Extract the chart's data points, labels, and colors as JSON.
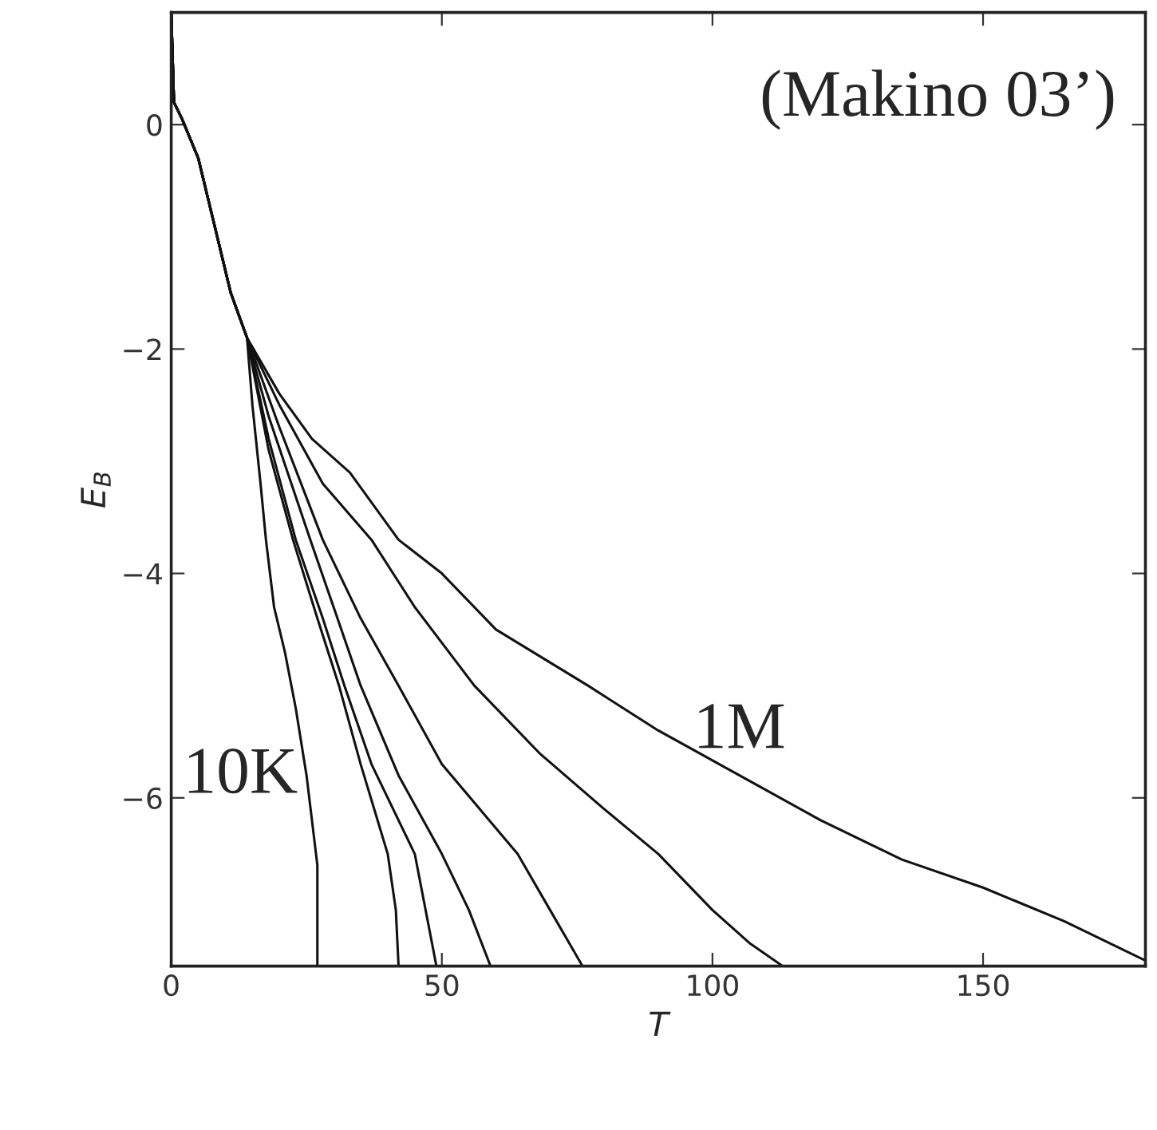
{
  "chart_data": {
    "type": "line",
    "xlabel": "T",
    "ylabel": "E$_{B}$",
    "xlim": [
      0,
      180
    ],
    "ylim": [
      -7.5,
      1
    ],
    "xticks": [
      0,
      50,
      100,
      150
    ],
    "yticks": [
      -6,
      -4,
      -2,
      0
    ],
    "grid": false,
    "legend": false,
    "marker": "none",
    "line_style": "solid",
    "series": [
      {
        "color": "#111111",
        "x": [
          0,
          0.5,
          2,
          5,
          8,
          11,
          14,
          15,
          16.5,
          17.5,
          19,
          21,
          23,
          25,
          26,
          27,
          27
        ],
        "values": [
          1,
          0.2,
          0.05,
          -0.3,
          -0.9,
          -1.5,
          -1.9,
          -2.5,
          -3.2,
          -3.7,
          -4.3,
          -4.7,
          -5.2,
          -5.8,
          -6.2,
          -6.6,
          -7.5
        ]
      },
      {
        "color": "#111111",
        "x": [
          0,
          0.5,
          2,
          5,
          8,
          11,
          14,
          18,
          22.5,
          27,
          31,
          35,
          40,
          41.5,
          42
        ],
        "values": [
          1,
          0.2,
          0.05,
          -0.3,
          -0.9,
          -1.5,
          -1.9,
          -2.9,
          -3.7,
          -4.4,
          -5.0,
          -5.7,
          -6.5,
          -7.0,
          -7.5
        ]
      },
      {
        "color": "#111111",
        "x": [
          0,
          0.5,
          2,
          5,
          8,
          11,
          14,
          18,
          23,
          28,
          32,
          37,
          45,
          49
        ],
        "values": [
          1,
          0.2,
          0.05,
          -0.3,
          -0.9,
          -1.5,
          -1.9,
          -2.8,
          -3.7,
          -4.4,
          -5.0,
          -5.7,
          -6.5,
          -7.5
        ]
      },
      {
        "color": "#111111",
        "x": [
          0,
          0.5,
          2,
          5,
          8,
          11,
          14,
          18,
          25.7,
          30,
          35,
          42,
          50,
          55,
          59
        ],
        "values": [
          1,
          0.2,
          0.05,
          -0.3,
          -0.9,
          -1.5,
          -1.9,
          -2.6,
          -3.7,
          -4.3,
          -5.0,
          -5.8,
          -6.5,
          -7.0,
          -7.5
        ]
      },
      {
        "color": "#111111",
        "x": [
          0,
          0.5,
          2,
          5,
          8,
          11,
          14,
          20,
          28,
          35,
          42,
          50,
          57,
          64,
          70,
          76
        ],
        "values": [
          1,
          0.2,
          0.05,
          -0.3,
          -0.9,
          -1.5,
          -1.9,
          -2.7,
          -3.7,
          -4.4,
          -5.0,
          -5.7,
          -6.1,
          -6.5,
          -7.0,
          -7.5
        ]
      },
      {
        "color": "#111111",
        "x": [
          0,
          0.5,
          2,
          5,
          8,
          11,
          14,
          20,
          28,
          37,
          45,
          56,
          68,
          80,
          90,
          100,
          107,
          113
        ],
        "values": [
          1,
          0.2,
          0.05,
          -0.3,
          -0.9,
          -1.5,
          -1.9,
          -2.5,
          -3.2,
          -3.7,
          -4.3,
          -5.0,
          -5.6,
          -6.1,
          -6.5,
          -7.0,
          -7.3,
          -7.5
        ]
      },
      {
        "color": "#111111",
        "x": [
          0,
          0.5,
          2,
          5,
          8,
          11,
          14,
          20,
          26,
          33,
          42,
          50,
          60,
          77,
          90,
          105,
          120,
          135,
          150,
          165,
          180
        ],
        "values": [
          1,
          0.2,
          0.05,
          -0.3,
          -0.9,
          -1.5,
          -1.9,
          -2.4,
          -2.8,
          -3.1,
          -3.7,
          -4.0,
          -4.5,
          -5.0,
          -5.4,
          -5.8,
          -6.2,
          -6.55,
          -6.8,
          -7.1,
          -7.45
        ]
      }
    ],
    "annotations": [
      "(Makino 03’)",
      {
        "text": "1M",
        "x": 105,
        "y": -5.8
      },
      {
        "text": "10K",
        "x": 25,
        "y": -6.2
      }
    ]
  }
}
